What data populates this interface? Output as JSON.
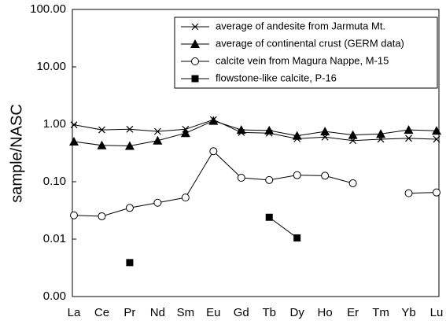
{
  "chart_data": {
    "type": "line",
    "y_label": "sample/NASC",
    "log_scale": true,
    "categories": [
      "La",
      "Ce",
      "Pr",
      "Nd",
      "Sm",
      "Eu",
      "Gd",
      "Tb",
      "Dy",
      "Ho",
      "Er",
      "Tm",
      "Yb",
      "Lu"
    ],
    "ylim": [
      0.001,
      100
    ],
    "yticks": [
      {
        "value": 0.001,
        "label": "0.00"
      },
      {
        "value": 0.01,
        "label": "0.01"
      },
      {
        "value": 0.1,
        "label": "0.10"
      },
      {
        "value": 1,
        "label": "1.00"
      },
      {
        "value": 10,
        "label": "10.00"
      },
      {
        "value": 100,
        "label": "100.00"
      }
    ],
    "legend_position": "upper right",
    "series": [
      {
        "name": "average of andesite from Jarmuta Mt.",
        "color": "#000000",
        "marker": "x",
        "values": [
          0.98,
          0.8,
          0.82,
          0.75,
          0.82,
          1.2,
          0.72,
          0.7,
          0.56,
          0.6,
          0.52,
          0.55,
          0.57,
          0.55
        ]
      },
      {
        "name": "average of continental crust (GERM data)",
        "color": "#000000",
        "marker": "triangle",
        "values": [
          0.5,
          0.43,
          0.42,
          0.52,
          0.7,
          1.15,
          0.8,
          0.78,
          0.63,
          0.75,
          0.65,
          0.68,
          0.8,
          0.77
        ]
      },
      {
        "name": "calcite vein from Magura Nappe, M-15",
        "color": "#000000",
        "marker": "circle",
        "values": [
          0.026,
          0.025,
          0.035,
          0.043,
          0.053,
          0.34,
          0.117,
          0.107,
          0.13,
          0.127,
          0.094,
          null,
          0.063,
          0.065
        ]
      },
      {
        "name": "flowstone-like calcite, P-16",
        "color": "#000000",
        "marker": "square",
        "values": [
          null,
          null,
          0.0039,
          null,
          null,
          null,
          null,
          0.024,
          0.0105,
          null,
          null,
          null,
          null,
          null
        ]
      }
    ]
  }
}
